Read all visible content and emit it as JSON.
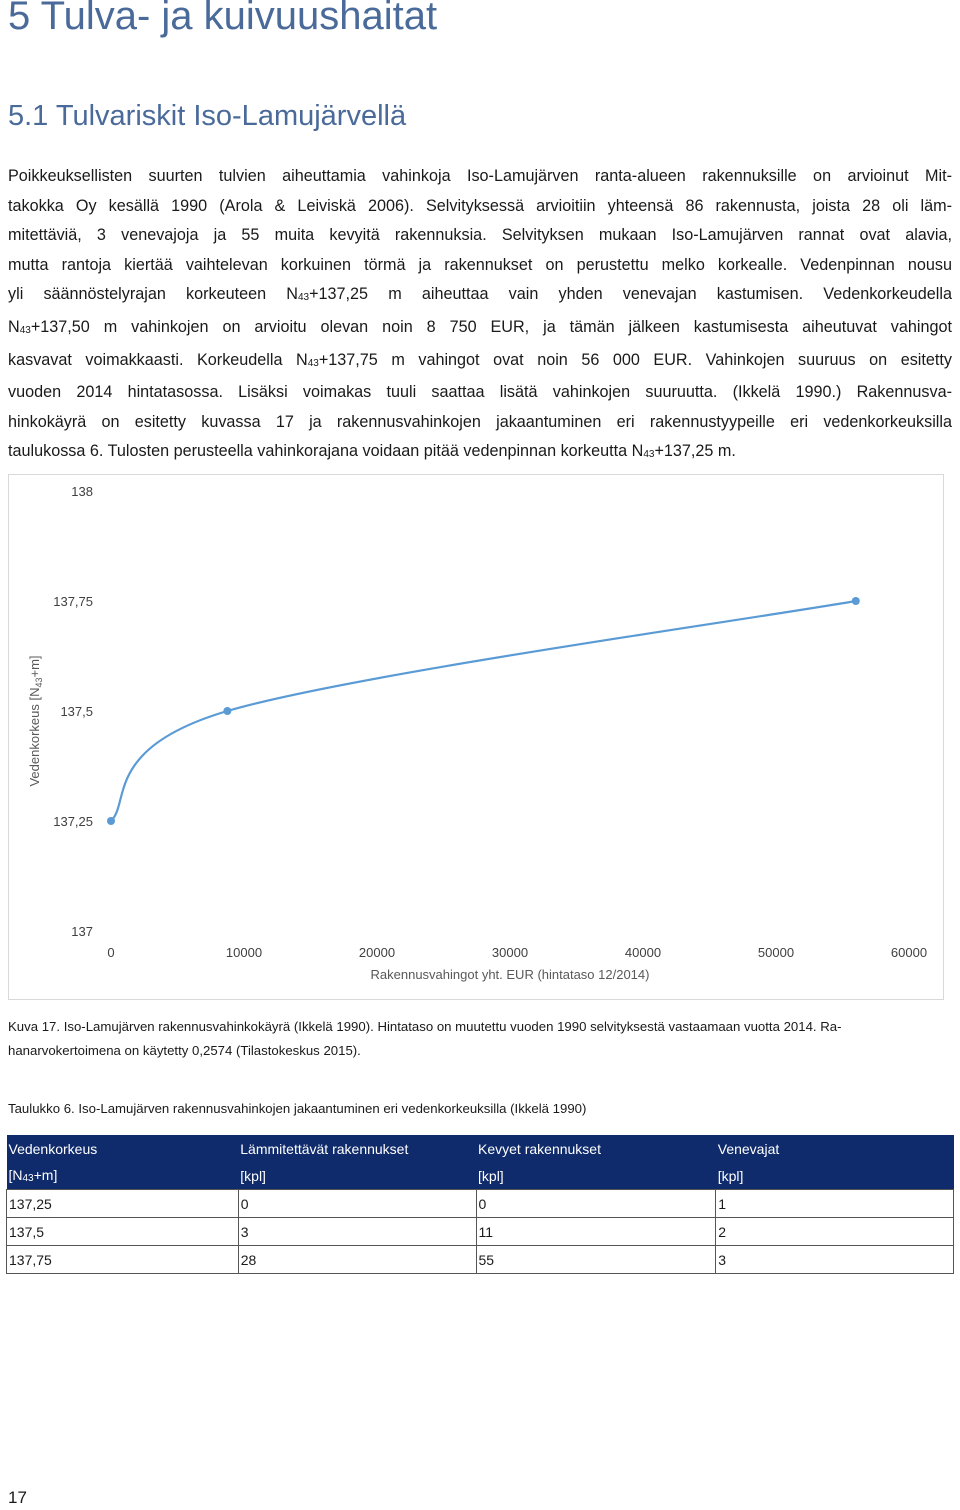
{
  "heading": "5 Tulva- ja kuivuushaitat",
  "subheading": "5.1 Tulvariskit Iso-Lamujärvellä",
  "paragraph": {
    "l1": "Poikkeuksellisten suurten tulvien aiheuttamia vahinkoja Iso-Lamujärven ranta-alueen rakennuksille on arvioinut Mit-",
    "l2": "takokka Oy kesällä 1990 (Arola & Leiviskä 2006). Selvityksessä arvioitiin yhteensä 86 rakennusta, joista 28 oli läm-",
    "l3": "mitettäviä, 3 venevajoja ja 55 muita kevyitä rakennuksia. Selvityksen mukaan Iso-Lamujärven rannat ovat alavia,",
    "l4": "mutta rantoja kiertää vaihtelevan korkuinen törmä ja rakennukset on perustettu melko korkealle. Vedenpinnan nousu",
    "l5a": "yli säännöstelyrajan korkeuteen N",
    "l5b": "+137,25 m aiheuttaa vain yhden venevajan kastumisen. Vedenkorkeudella",
    "l6a": "N",
    "l6b": "+137,50 m vahinkojen on arvioitu olevan noin 8 750 EUR, ja tämän jälkeen kastumisesta aiheutuvat vahingot",
    "l7a": "kasvavat voimakkaasti. Korkeudella N",
    "l7b": "+137,75 m vahingot ovat noin 56 000 EUR. Vahinkojen suuruus on esitetty",
    "l8": "vuoden 2014 hintatasossa. Lisäksi voimakas tuuli saattaa lisätä vahinkojen suuruutta. (Ikkelä 1990.) Rakennusva-",
    "l9": "hinkokäyrä on esitetty kuvassa 17 ja rakennusvahinkojen jakaantuminen eri rakennustyypeille eri vedenkorkeuksilla",
    "l10a": "taulukossa 6. Tulosten perusteella vahinkorajana voidaan pitää vedenpinnan korkeutta N",
    "l10b": "+137,25 m.",
    "sub": "43"
  },
  "chart_data": {
    "type": "line",
    "smooth": true,
    "x": [
      0,
      8750,
      56000
    ],
    "y": [
      137.25,
      137.5,
      137.75
    ],
    "xlim": [
      0,
      60000
    ],
    "ylim": [
      137,
      138
    ],
    "x_ticks": [
      "0",
      "10000",
      "20000",
      "30000",
      "40000",
      "50000",
      "60000"
    ],
    "y_ticks": [
      "137",
      "137,25",
      "137,5",
      "137,75",
      "138"
    ],
    "xlabel": "Rakennusvahingot yht. EUR (hintataso 12/2014)",
    "ylabel_pre": "Vedenkorkeus [N",
    "ylabel_sub": "43",
    "ylabel_post": "+m]",
    "grid": false,
    "line_color": "#5b9bd5"
  },
  "caption": {
    "l1": "Kuva 17. Iso-Lamujärven rakennusvahinkokäyrä (Ikkelä 1990). Hintataso on muutettu vuoden 1990 selvityksestä vastaamaan vuotta 2014. Ra-",
    "l2": "hanarvokertoimena on käytetty 0,2574 (Tilastokeskus 2015)."
  },
  "table_title": "Taulukko 6. Iso-Lamujärven rakennusvahinkojen jakaantuminen eri vedenkorkeuksilla (Ikkelä 1990)",
  "table": {
    "headers": [
      {
        "top": "Vedenkorkeus",
        "bottom_pre": "[N",
        "bottom_sub": "43",
        "bottom_post": "+m]"
      },
      {
        "top": "Lämmitettävät rakennukset",
        "bottom": "[kpl]"
      },
      {
        "top": "Kevyet rakennukset",
        "bottom": "[kpl]"
      },
      {
        "top": "Venevajat",
        "bottom": "[kpl]"
      }
    ],
    "rows": [
      [
        "137,25",
        "0",
        "0",
        "1"
      ],
      [
        "137,5",
        "3",
        "11",
        "2"
      ],
      [
        "137,75",
        "28",
        "55",
        "3"
      ]
    ],
    "header_bg": "#0f2b6b"
  },
  "page_number": "17"
}
